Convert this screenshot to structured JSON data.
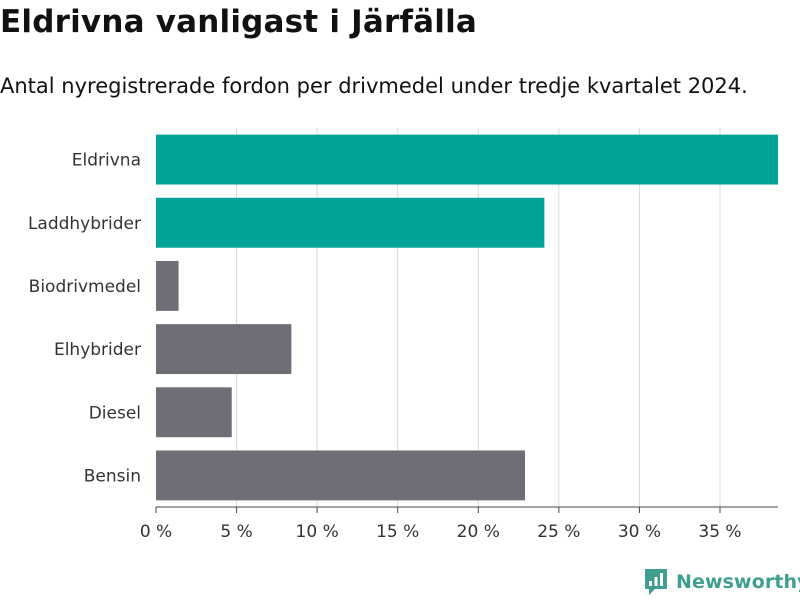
{
  "header": {
    "title": "Eldrivna vanligast i Järfälla",
    "subtitle": "Antal nyregistrerade fordon per drivmedel under tredje kvartalet 2024."
  },
  "brand": {
    "name": "Newsworthy"
  },
  "colors": {
    "highlight": "#00a398",
    "default": "#6f6e76",
    "grid": "#d9d9d9",
    "brand": "#3f9e8f"
  },
  "chart_data": {
    "type": "bar",
    "orientation": "horizontal",
    "categories": [
      "Eldrivna",
      "Laddhybrider",
      "Biodrivmedel",
      "Elhybrider",
      "Diesel",
      "Bensin"
    ],
    "values": [
      38.6,
      24.1,
      1.4,
      8.4,
      4.7,
      22.9
    ],
    "highlighted": [
      "Eldrivna",
      "Laddhybrider"
    ],
    "xlim": [
      0,
      38.6
    ],
    "xticks": [
      0,
      5,
      10,
      15,
      20,
      25,
      30,
      35
    ],
    "xtick_labels": [
      "0 %",
      "5 %",
      "10 %",
      "15 %",
      "20 %",
      "25 %",
      "30 %",
      "35 %"
    ],
    "title": "Eldrivna vanligast i Järfälla",
    "xlabel": "",
    "ylabel": "",
    "grid": true
  }
}
